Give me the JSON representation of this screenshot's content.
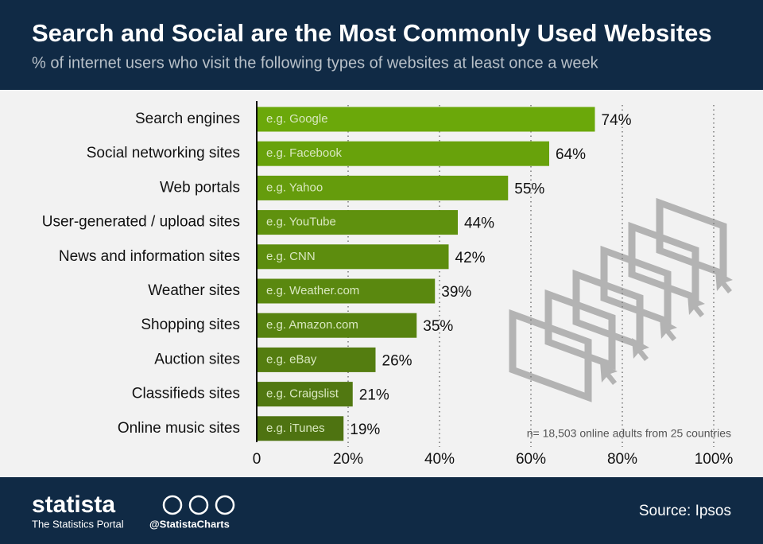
{
  "chart_data": {
    "type": "bar",
    "orientation": "horizontal",
    "title": "Search and Social are the Most Commonly Used Websites",
    "subtitle": "% of internet users who visit the following types of websites at least once a week",
    "categories": [
      "Search engines",
      "Social networking sites",
      "Web portals",
      "User-generated / upload sites",
      "News and information sites",
      "Weather sites",
      "Shopping sites",
      "Auction sites",
      "Classifieds sites",
      "Online music sites"
    ],
    "examples": [
      "e.g. Google",
      "e.g. Facebook",
      "e.g. Yahoo",
      "e.g. YouTube",
      "e.g. CNN",
      "e.g. Weather.com",
      "e.g. Amazon.com",
      "e.g. eBay",
      "e.g. Craigslist",
      "e.g. iTunes"
    ],
    "values": [
      74,
      64,
      55,
      44,
      42,
      39,
      35,
      26,
      21,
      19
    ],
    "value_labels": [
      "74%",
      "64%",
      "55%",
      "44%",
      "42%",
      "39%",
      "35%",
      "26%",
      "21%",
      "19%"
    ],
    "colors": [
      "#6ba80a",
      "#68a20b",
      "#659c0c",
      "#5f910e",
      "#5d8d0e",
      "#5a880f",
      "#578310",
      "#547d10",
      "#517811",
      "#4e7311"
    ],
    "xlim": [
      0,
      100
    ],
    "xticks": [
      0,
      {
        "value": 20,
        "label": "20%"
      },
      {
        "value": 40,
        "label": "40%"
      },
      {
        "value": 60,
        "label": "60%"
      },
      {
        "value": 80,
        "label": "80%"
      },
      {
        "value": 100,
        "label": "100%"
      }
    ],
    "grid": true,
    "note": "n= 18,503 online adults from 25 countries"
  },
  "footer": {
    "brand": "statista",
    "tagline": "The Statistics Portal",
    "handle": "@StatistaCharts",
    "source": "Source: Ipsos"
  }
}
